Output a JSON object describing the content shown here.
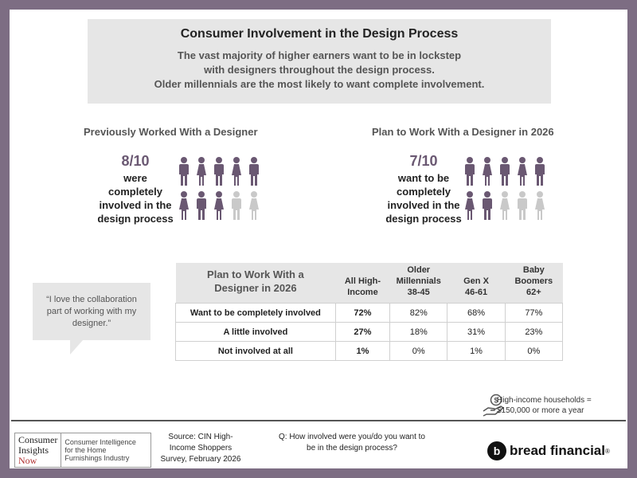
{
  "header": {
    "title": "Consumer Involvement in the Design Process",
    "subtitle_lines": [
      "The vast majority of higher earners want to be in lockstep",
      "with designers throughout the design process.",
      "Older millennials are the most likely to want complete involvement."
    ]
  },
  "left_stat": {
    "title": "Previously Worked With a Designer",
    "fraction": "8/10",
    "label_lines": [
      "were",
      "completely",
      "involved in the",
      "design process"
    ],
    "filled_count": 8,
    "total_count": 10
  },
  "right_stat": {
    "title": "Plan to Work With a Designer in 2026",
    "fraction": "7/10",
    "label_lines": [
      "want to be",
      "completely",
      "involved in the",
      "design process"
    ],
    "filled_count": 7,
    "total_count": 10
  },
  "quote": {
    "lines": [
      "“I love the collaboration",
      "part of working with my",
      "designer.”"
    ]
  },
  "table": {
    "title_lines": [
      "Plan to Work With a",
      "Designer in 2026"
    ],
    "columns": [
      [
        "All High-",
        "Income"
      ],
      [
        "Older",
        "Millennials",
        "38-45"
      ],
      [
        "Gen X",
        "46-61"
      ],
      [
        "Baby",
        "Boomers",
        "62+"
      ]
    ],
    "rows": [
      {
        "label": "Want to be completely involved",
        "values": [
          "72%",
          "82%",
          "68%",
          "77%"
        ]
      },
      {
        "label": "A little involved",
        "values": [
          "27%",
          "18%",
          "31%",
          "23%"
        ]
      },
      {
        "label": "Not involved at all",
        "values": [
          "1%",
          "0%",
          "1%",
          "0%"
        ]
      }
    ]
  },
  "note": {
    "lines": [
      "High-income households =",
      "$150,000 or more a year"
    ],
    "icon": "hand-money-icon"
  },
  "footer": {
    "logo_lines": [
      "Consumer",
      "Insights",
      "Now"
    ],
    "logo_tagline": [
      "Consumer Intelligence",
      "for the Home",
      "Furnishings Industry"
    ],
    "source_lines": [
      "Source: CIN High-",
      "Income Shoppers",
      "Survey, February 2026"
    ],
    "question_lines": [
      "Q: How involved were you/do you want to",
      "be in the design process?"
    ],
    "brand_name": "bread financial",
    "brand_mark": "®"
  },
  "colors": {
    "filled": "#6a5872",
    "empty": "#c9c9c9",
    "frame": "#7d6d83"
  }
}
